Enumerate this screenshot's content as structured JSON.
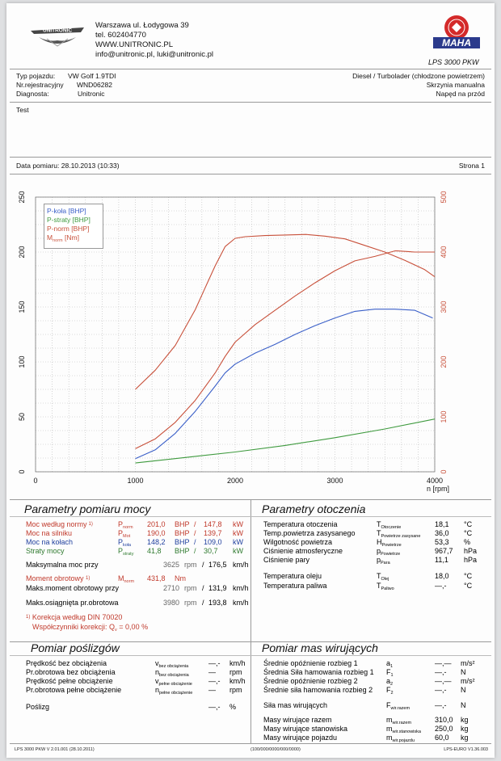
{
  "header": {
    "address": "Warszawa ul. Łodygowa 39",
    "phone": "tel. 602404770",
    "web": "WWW.UNITRONIC.PL",
    "email": "info@unitronic.pl, luki@unitronic.pl",
    "logo_left": "UNITRONIC",
    "logo_right": "MAHA",
    "model": "LPS 3000 PKW"
  },
  "vehicle": {
    "type_label": "Typ pojazdu:",
    "type_value": "VW Golf 1.9TDI",
    "reg_label": "Nr.rejestracyjny",
    "reg_value": "WND06282",
    "diag_label": "Diagnosta:",
    "diag_value": "Unitronic",
    "engine": "Diesel / Turbolader (chłodzone powietrzem)",
    "gearbox": "Skrzynia manualna",
    "drive": "Napęd na przód",
    "note": "Test"
  },
  "measure": {
    "date": "Data pomiaru: 28.10.2013 (10:33)",
    "page": "Strona 1"
  },
  "chart_data": {
    "type": "line",
    "x_label": "n [rpm]",
    "x_ticks": [
      "0",
      "1000",
      "2000",
      "3000",
      "4000"
    ],
    "y_left_ticks": [
      "0",
      "50",
      "100",
      "150",
      "200",
      "250"
    ],
    "y_right_ticks": [
      "0",
      "100",
      "200",
      "300",
      "400",
      "500"
    ],
    "ylim_left": [
      0,
      250
    ],
    "ylim_right": [
      0,
      500
    ],
    "xlim": [
      0,
      4000
    ],
    "legend": [
      "P-koła [BHP]",
      "P-straty [BHP]",
      "P-norm [BHP]",
      "M",
      "norm",
      "[Nm]"
    ],
    "series": [
      {
        "name": "P-koła [BHP]",
        "color": "#3a5fc8",
        "axis": "left",
        "x": [
          1000,
          1200,
          1400,
          1600,
          1800,
          1900,
          2000,
          2200,
          2400,
          2600,
          2800,
          3000,
          3200,
          3400,
          3600,
          3800,
          3980
        ],
        "y": [
          12,
          20,
          35,
          55,
          78,
          90,
          98,
          108,
          116,
          125,
          133,
          140,
          146,
          148,
          148,
          147,
          140
        ]
      },
      {
        "name": "P-straty [BHP]",
        "color": "#3e9a3e",
        "axis": "left",
        "x": [
          1000,
          1500,
          2000,
          2500,
          3000,
          3500,
          4000
        ],
        "y": [
          8,
          13,
          18,
          24,
          31,
          39,
          48
        ]
      },
      {
        "name": "P-norm [BHP]",
        "color": "#c8503a",
        "axis": "left",
        "x": [
          1000,
          1200,
          1400,
          1600,
          1800,
          1900,
          2000,
          2200,
          2400,
          2600,
          2800,
          3000,
          3200,
          3400,
          3600,
          3625,
          3800,
          4000
        ],
        "y": [
          21,
          30,
          45,
          65,
          90,
          105,
          118,
          134,
          147,
          160,
          172,
          183,
          192,
          196,
          201,
          201,
          200,
          200
        ]
      },
      {
        "name": "M norm [Nm]",
        "color": "#c8503a",
        "axis": "right",
        "x": [
          1000,
          1200,
          1400,
          1600,
          1700,
          1800,
          1900,
          2000,
          2100,
          2300,
          2500,
          2710,
          2900,
          3100,
          3300,
          3500,
          3700,
          3900,
          4000
        ],
        "y": [
          150,
          185,
          230,
          295,
          335,
          375,
          410,
          425,
          428,
          430,
          431,
          432,
          429,
          424,
          412,
          400,
          385,
          368,
          355
        ]
      }
    ]
  },
  "power": {
    "title": "Parametry pomiaru mocy",
    "rows": [
      {
        "label": "Moc według normy",
        "sup": "1)",
        "sym": "P",
        "sub": "norm",
        "v1": "201,0",
        "u1": "BHP",
        "v2": "147,8",
        "u2": "kW",
        "color": "red"
      },
      {
        "label": "Moc na silniku",
        "sup": "",
        "sym": "P",
        "sub": "Mot",
        "v1": "190,0",
        "u1": "BHP",
        "v2": "139,7",
        "u2": "kW",
        "color": "red"
      },
      {
        "label": "Moc na kołach",
        "sup": "",
        "sym": "P",
        "sub": "koła",
        "v1": "148,2",
        "u1": "BHP",
        "v2": "109,0",
        "u2": "kW",
        "color": "blue"
      },
      {
        "label": "Straty mocy",
        "sup": "",
        "sym": "P",
        "sub": "straty",
        "v1": "41,8",
        "u1": "BHP",
        "v2": "30,7",
        "u2": "kW",
        "color": "green"
      }
    ],
    "maxpower_label": "Maksymalna moc przy",
    "maxpower_rpm": "3625",
    "maxpower_kmh": "176,5",
    "torque_label": "Moment obrotowy",
    "torque_sup": "1)",
    "torque_sym": "M",
    "torque_sub": "norm",
    "torque_value": "431,8",
    "torque_unit": "Nm",
    "maxtorque_label": "Maks.moment obrotowy przy",
    "maxtorque_rpm": "2710",
    "maxtorque_kmh": "131,9",
    "maxrpm_label": "Maks.osiągnięta pr.obrotowa",
    "maxrpm_rpm": "3980",
    "maxrpm_kmh": "193,8",
    "rpm_unit": "rpm",
    "kmh_unit": "km/h",
    "slash": "/",
    "corr_sup": "1)",
    "corr_text": "Korekcja według DIN 70020",
    "corr_factor_label": "Współczynniki korekcji: Q",
    "corr_factor_sub": "v",
    "corr_factor_value": "= 0,00 %"
  },
  "ambient": {
    "title": "Parametry otoczenia",
    "rows": [
      {
        "label": "Temperatura otoczenia",
        "sym": "T",
        "sub": "Otoczenie",
        "val": "18,1",
        "unit": "°C"
      },
      {
        "label": "Temp.powietrza zasysanego",
        "sym": "T",
        "sub": "Powietrze zasysane",
        "val": "36,0",
        "unit": "°C"
      },
      {
        "label": "Wilgotność powietrza",
        "sym": "H",
        "sub": "Powietrze",
        "val": "53,3",
        "unit": "%"
      },
      {
        "label": "Ciśnienie atmosferyczne",
        "sym": "p",
        "sub": "Powietrze",
        "val": "967,7",
        "unit": "hPa"
      },
      {
        "label": "Ciśnienie pary",
        "sym": "p",
        "sub": "Para",
        "val": "11,1",
        "unit": "hPa"
      },
      {
        "label": "Temperatura oleju",
        "sym": "T",
        "sub": "Olej",
        "val": "18,0",
        "unit": "°C"
      },
      {
        "label": "Temperatura paliwa",
        "sym": "T",
        "sub": "Paliwo",
        "val": "—,-",
        "unit": "°C"
      }
    ]
  },
  "slip": {
    "title": "Pomiar poślizgów",
    "rows": [
      {
        "label": "Prędkość bez obciążenia",
        "sym": "v",
        "sub": "bez obciążenia",
        "val": "—,-",
        "unit": "km/h"
      },
      {
        "label": "Pr.obrotowa bez obciążenia",
        "sym": "n",
        "sub": "bez obciążenia",
        "val": "—",
        "unit": "rpm"
      },
      {
        "label": "Prędkość pełne obciążenie",
        "sym": "v",
        "sub": "pełne obciążenie",
        "val": "—,-",
        "unit": "km/h"
      },
      {
        "label": "Pr.obrotowa pełne obciążenie",
        "sym": "n",
        "sub": "pełne obciążenie",
        "val": "—",
        "unit": "rpm"
      }
    ],
    "slip_label": "Poślizg",
    "slip_val": "—,-",
    "slip_unit": "%"
  },
  "masses": {
    "title": "Pomiar mas wirujących",
    "rows": [
      {
        "label": "Średnie opóźnienie rozbieg 1",
        "sym": "a",
        "sub": "1",
        "val": "—,—",
        "unit": "m/s²"
      },
      {
        "label": "Średnia Siła hamowania rozbieg 1",
        "sym": "F",
        "sub": "1",
        "val": "—,-",
        "unit": "N"
      },
      {
        "label": "Średnie opóźnienie rozbieg 2",
        "sym": "a",
        "sub": "2",
        "val": "—,—",
        "unit": "m/s²"
      },
      {
        "label": "Średnie siła hamowania rozbieg 2",
        "sym": "F",
        "sub": "2",
        "val": "—,-",
        "unit": "N"
      },
      {
        "label": "Siła mas wirujących",
        "sym": "F",
        "sub": "wir.razem",
        "val": "—,-",
        "unit": "N"
      },
      {
        "label": "Masy wirujące razem",
        "sym": "m",
        "sub": "wir.razem",
        "val": "310,0",
        "unit": "kg"
      },
      {
        "label": "Masy wirujące stanowiska",
        "sym": "m",
        "sub": "wir.stanowiska",
        "val": "250,0",
        "unit": "kg"
      },
      {
        "label": "Masy wirujące pojazdu",
        "sym": "m",
        "sub": "wir.pojazdu",
        "val": "60,0",
        "unit": "kg"
      }
    ]
  },
  "footer": {
    "left": "LPS 3000 PKW V 2.01.001 (28.10.2011)",
    "center": "(100/000/0000/000/0000)",
    "right": "LPS-EURO V1.36.003"
  }
}
